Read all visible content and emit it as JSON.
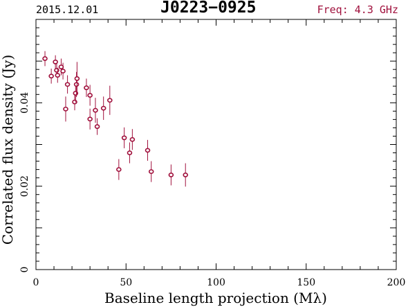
{
  "header": {
    "date": "2015.12.01",
    "source": "J0223−0925",
    "frequency": "Freq: 4.3 GHz"
  },
  "colors": {
    "points": "#a0103c",
    "frequency_text": "#a0103c",
    "axes": "#000000"
  },
  "chart_data": {
    "type": "scatter",
    "xlabel": "Baseline length projection (Mλ)",
    "ylabel": "Correlated flux density (Jy)",
    "xlim": [
      0,
      200
    ],
    "ylim": [
      0,
      0.06
    ],
    "xticks": [
      0,
      50,
      100,
      150,
      200
    ],
    "xtick_labels": [
      "0",
      "50",
      "100",
      "150",
      "200"
    ],
    "yticks": [
      0,
      0.02,
      0.04
    ],
    "ytick_labels": [
      "0",
      "0.02",
      "0.04"
    ],
    "grid": false,
    "points": [
      {
        "x": 5.0,
        "y": 0.0506,
        "err": 0.0018
      },
      {
        "x": 8.5,
        "y": 0.0464,
        "err": 0.0018
      },
      {
        "x": 10.8,
        "y": 0.0498,
        "err": 0.0016
      },
      {
        "x": 11.5,
        "y": 0.0478,
        "err": 0.0017
      },
      {
        "x": 12.0,
        "y": 0.0466,
        "err": 0.0018
      },
      {
        "x": 14.0,
        "y": 0.0486,
        "err": 0.002
      },
      {
        "x": 15.0,
        "y": 0.0476,
        "err": 0.002
      },
      {
        "x": 16.5,
        "y": 0.0385,
        "err": 0.003
      },
      {
        "x": 17.5,
        "y": 0.0444,
        "err": 0.0022
      },
      {
        "x": 21.5,
        "y": 0.0402,
        "err": 0.002
      },
      {
        "x": 22.0,
        "y": 0.0423,
        "err": 0.0022
      },
      {
        "x": 22.5,
        "y": 0.0444,
        "err": 0.003
      },
      {
        "x": 22.8,
        "y": 0.0458,
        "err": 0.004
      },
      {
        "x": 28.0,
        "y": 0.0436,
        "err": 0.0022
      },
      {
        "x": 30.0,
        "y": 0.0418,
        "err": 0.0025
      },
      {
        "x": 30.0,
        "y": 0.0361,
        "err": 0.0025
      },
      {
        "x": 33.0,
        "y": 0.0382,
        "err": 0.003
      },
      {
        "x": 34.0,
        "y": 0.0343,
        "err": 0.002
      },
      {
        "x": 37.5,
        "y": 0.0387,
        "err": 0.0028
      },
      {
        "x": 41.0,
        "y": 0.0406,
        "err": 0.0035
      },
      {
        "x": 46.0,
        "y": 0.024,
        "err": 0.0025
      },
      {
        "x": 49.0,
        "y": 0.0316,
        "err": 0.0025
      },
      {
        "x": 52.0,
        "y": 0.028,
        "err": 0.0025
      },
      {
        "x": 53.5,
        "y": 0.0312,
        "err": 0.0025
      },
      {
        "x": 62.0,
        "y": 0.0286,
        "err": 0.0025
      },
      {
        "x": 64.0,
        "y": 0.0235,
        "err": 0.0025
      },
      {
        "x": 75.0,
        "y": 0.0227,
        "err": 0.0025
      },
      {
        "x": 83.0,
        "y": 0.0227,
        "err": 0.0028
      }
    ]
  }
}
